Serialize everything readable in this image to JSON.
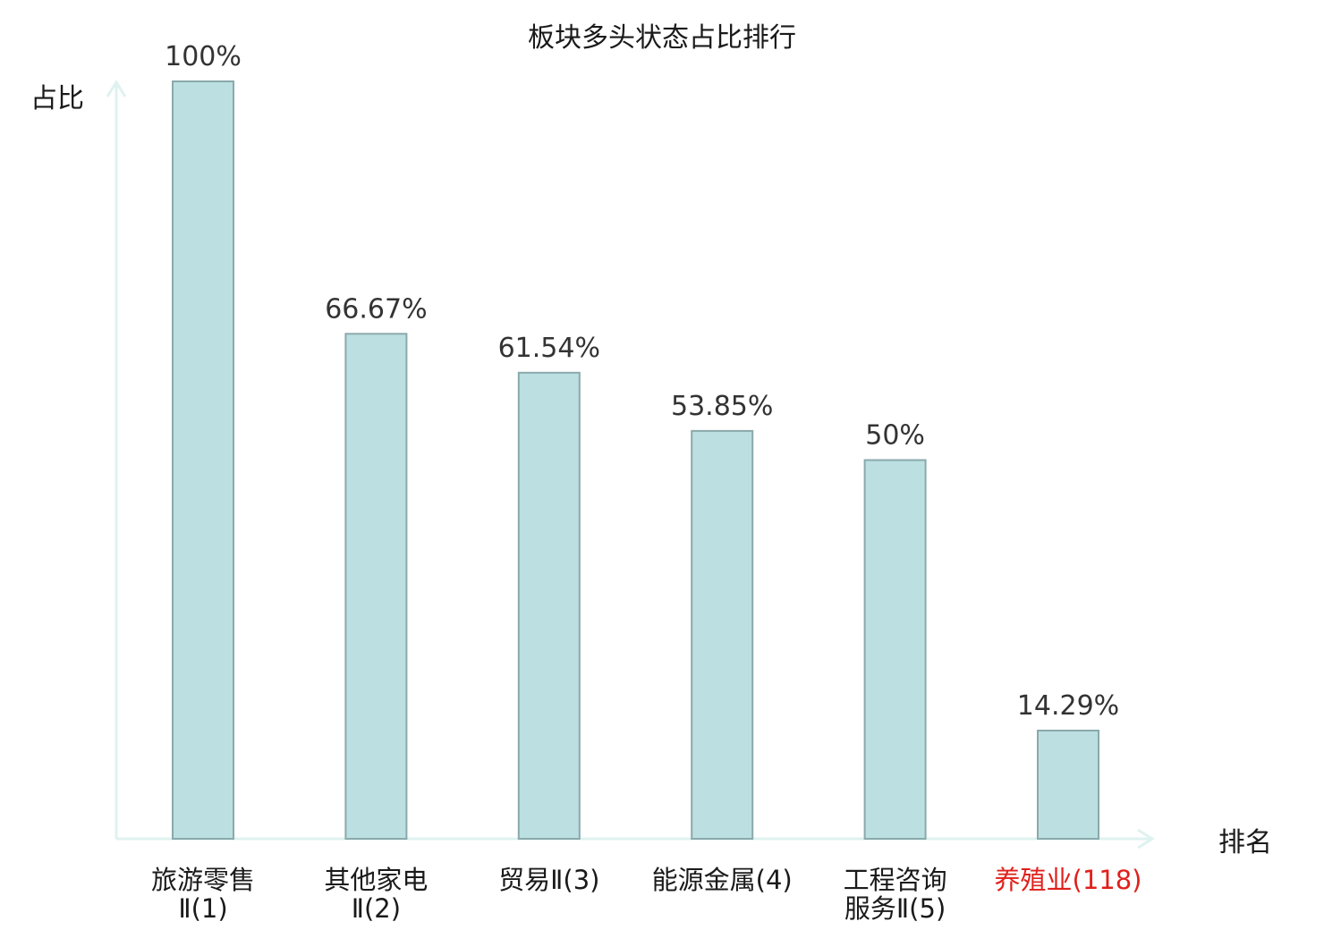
{
  "chart_data": {
    "type": "bar",
    "title": "板块多头状态占比排行",
    "ylabel": "占比",
    "xlabel": "排名",
    "ylim": [
      0,
      100
    ],
    "grid": false,
    "legend": "none",
    "categories": [
      [
        "旅游零售",
        "Ⅱ(1)"
      ],
      [
        "其他家电",
        "Ⅱ(2)"
      ],
      [
        "贸易Ⅱ(3)"
      ],
      [
        "能源金属(4)"
      ],
      [
        "工程咨询",
        "服务Ⅱ(5)"
      ],
      [
        "养殖业(118)"
      ]
    ],
    "values": [
      100,
      66.67,
      61.54,
      53.85,
      50,
      14.29
    ],
    "data_labels": [
      "100%",
      "66.67%",
      "61.54%",
      "53.85%",
      "50%",
      "14.29%"
    ],
    "highlight_index": 5,
    "colors": {
      "bar_fill": "#bce0e2",
      "bar_stroke": "#8aa9ab",
      "axis": "#dff2ef",
      "label_text": "#333333",
      "tick_text": "#1a1a1a",
      "highlight_text": "#e0201b",
      "background": "#ffffff"
    }
  }
}
